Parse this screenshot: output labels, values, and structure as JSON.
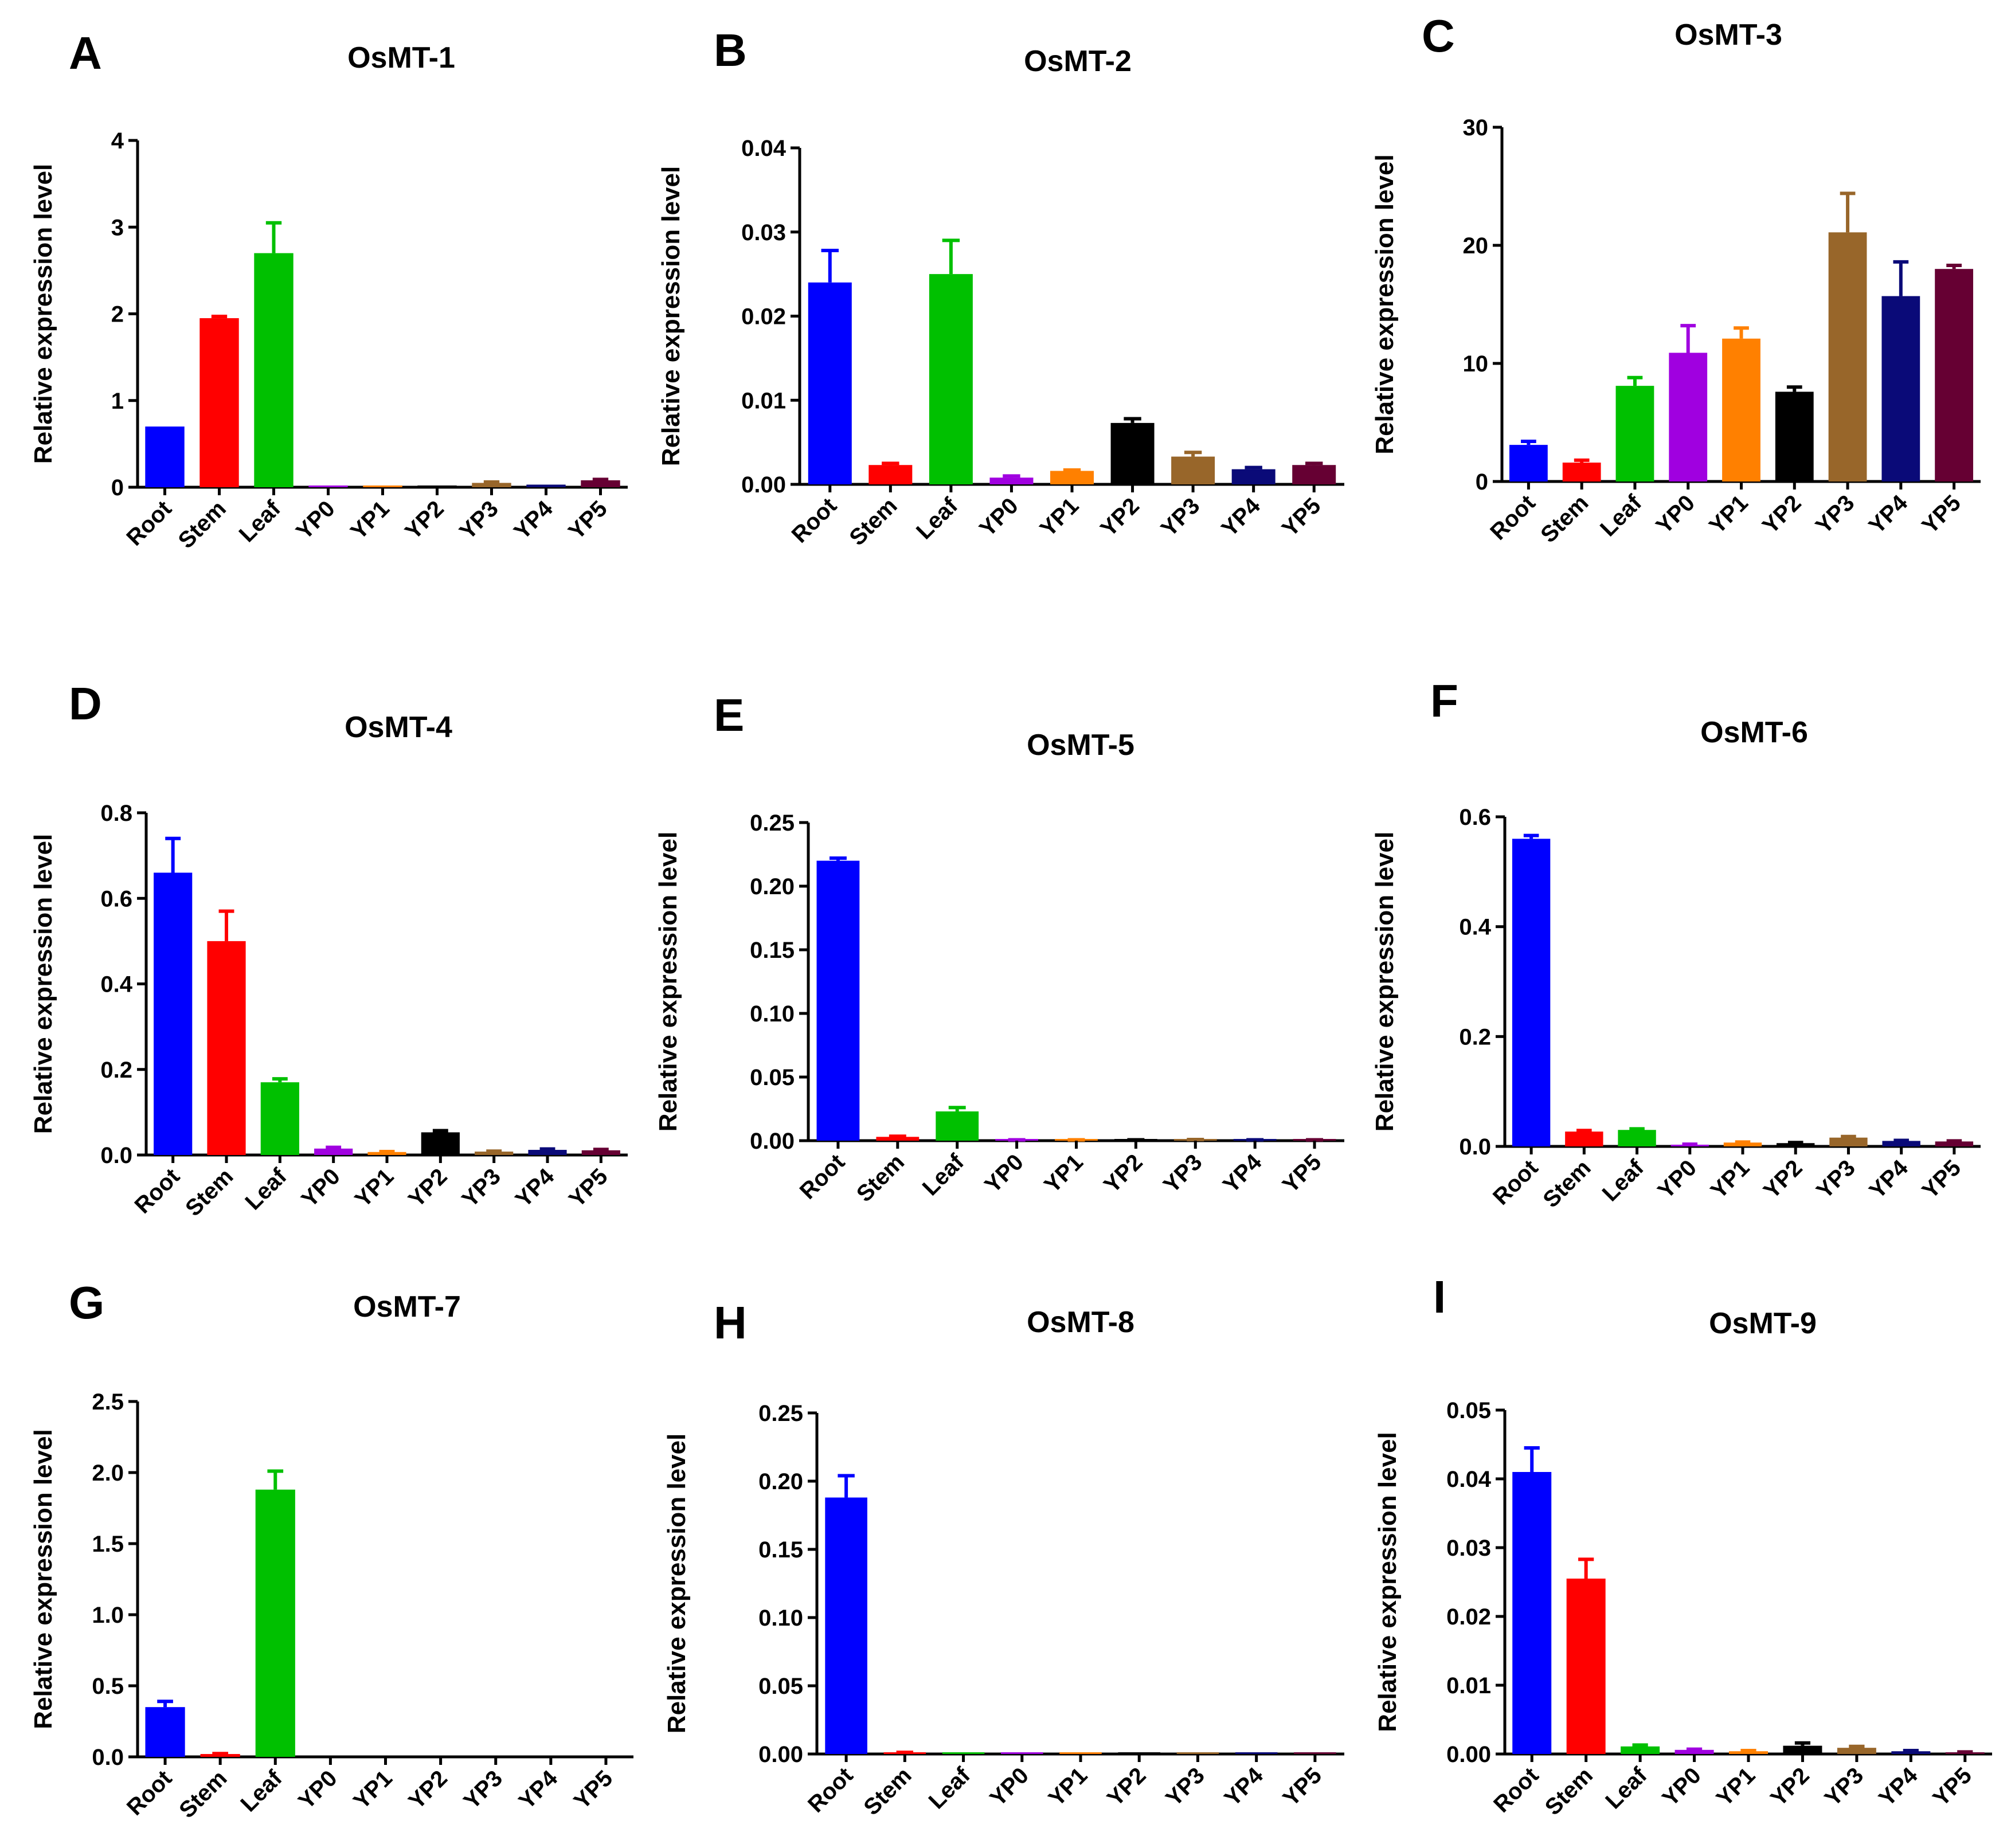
{
  "colors": {
    "Root": "#0000ff",
    "Stem": "#ff0000",
    "Leaf": "#00c000",
    "YP0": "#a000e0",
    "YP1": "#ff8000",
    "YP2": "#000000",
    "YP3": "#98662a",
    "YP4": "#0a0a78",
    "YP5": "#660033"
  },
  "chart_data": [
    {
      "type": "bar",
      "letter": "A",
      "title": "OsMT-1",
      "xlabel": "",
      "ylabel": "Relative expression level",
      "categories": [
        "Root",
        "Stem",
        "Leaf",
        "YP0",
        "YP1",
        "YP2",
        "YP3",
        "YP4",
        "YP5"
      ],
      "values": [
        0.7,
        1.95,
        2.7,
        0.01,
        0.01,
        0.02,
        0.05,
        0.03,
        0.08
      ],
      "errors": [
        0.0,
        0.02,
        0.35,
        0.0,
        0.0,
        0.0,
        0.01,
        0.0,
        0.01
      ],
      "ylim": [
        0,
        4
      ],
      "ticks": [
        0,
        1,
        2,
        3,
        4
      ],
      "tick_labels": [
        "0",
        "1",
        "2",
        "3",
        "4"
      ]
    },
    {
      "type": "bar",
      "letter": "B",
      "title": "OsMT-2",
      "xlabel": "",
      "ylabel": "Relative expression level",
      "categories": [
        "Root",
        "Stem",
        "Leaf",
        "YP0",
        "YP1",
        "YP2",
        "YP3",
        "YP4",
        "YP5"
      ],
      "values": [
        0.024,
        0.0023,
        0.025,
        0.0008,
        0.0016,
        0.0073,
        0.0033,
        0.0018,
        0.0023
      ],
      "errors": [
        0.0038,
        0.0002,
        0.004,
        0.0002,
        0.0001,
        0.0005,
        0.0005,
        0.0002,
        0.0002
      ],
      "ylim": [
        0,
        0.04
      ],
      "ticks": [
        0,
        0.01,
        0.02,
        0.03,
        0.04
      ],
      "tick_labels": [
        "0.00",
        "0.01",
        "0.02",
        "0.03",
        "0.04"
      ]
    },
    {
      "type": "bar",
      "letter": "C",
      "title": "OsMT-3",
      "xlabel": "",
      "ylabel": "Relative expression level",
      "categories": [
        "Root",
        "Stem",
        "Leaf",
        "YP0",
        "YP1",
        "YP2",
        "YP3",
        "YP4",
        "YP5"
      ],
      "values": [
        3.1,
        1.6,
        8.1,
        10.9,
        12.1,
        7.6,
        21.1,
        15.7,
        18.0
      ],
      "errors": [
        0.3,
        0.2,
        0.7,
        2.3,
        0.9,
        0.4,
        3.3,
        2.9,
        0.3
      ],
      "ylim": [
        0,
        30
      ],
      "ticks": [
        0,
        10,
        20,
        30
      ],
      "tick_labels": [
        "0",
        "10",
        "20",
        "30"
      ]
    },
    {
      "type": "bar",
      "letter": "D",
      "title": "OsMT-4",
      "xlabel": "",
      "ylabel": "Relative expression level",
      "categories": [
        "Root",
        "Stem",
        "Leaf",
        "YP0",
        "YP1",
        "YP2",
        "YP3",
        "YP4",
        "YP5"
      ],
      "values": [
        0.66,
        0.5,
        0.17,
        0.015,
        0.007,
        0.053,
        0.008,
        0.012,
        0.011
      ],
      "errors": [
        0.08,
        0.07,
        0.008,
        0.003,
        0.001,
        0.004,
        0.001,
        0.002,
        0.002
      ],
      "ylim": [
        0,
        0.8
      ],
      "ticks": [
        0,
        0.2,
        0.4,
        0.6,
        0.8
      ],
      "tick_labels": [
        "0.0",
        "0.2",
        "0.4",
        "0.6",
        "0.8"
      ]
    },
    {
      "type": "bar",
      "letter": "E",
      "title": "OsMT-5",
      "xlabel": "",
      "ylabel": "Relative expression level",
      "categories": [
        "Root",
        "Stem",
        "Leaf",
        "YP0",
        "YP1",
        "YP2",
        "YP3",
        "YP4",
        "YP5"
      ],
      "values": [
        0.22,
        0.003,
        0.023,
        0.0006,
        0.0006,
        0.0006,
        0.0008,
        0.0006,
        0.0006
      ],
      "errors": [
        0.002,
        0.0005,
        0.003,
        0.0001,
        0.0001,
        0.0001,
        0.0001,
        0.0001,
        0.0001
      ],
      "ylim": [
        0,
        0.25
      ],
      "ticks": [
        0,
        0.05,
        0.1,
        0.15,
        0.2,
        0.25
      ],
      "tick_labels": [
        "0.00",
        "0.05",
        "0.10",
        "0.15",
        "0.20",
        "0.25"
      ]
    },
    {
      "type": "bar",
      "letter": "F",
      "title": "OsMT-6",
      "xlabel": "",
      "ylabel": "Relative expression level",
      "categories": [
        "Root",
        "Stem",
        "Leaf",
        "YP0",
        "YP1",
        "YP2",
        "YP3",
        "YP4",
        "YP5"
      ],
      "values": [
        0.56,
        0.027,
        0.03,
        0.003,
        0.007,
        0.006,
        0.016,
        0.01,
        0.009
      ],
      "errors": [
        0.006,
        0.002,
        0.002,
        0.001,
        0.001,
        0.001,
        0.002,
        0.001,
        0.001
      ],
      "ylim": [
        0,
        0.6
      ],
      "ticks": [
        0,
        0.2,
        0.4,
        0.6
      ],
      "tick_labels": [
        "0.0",
        "0.2",
        "0.4",
        "0.6"
      ]
    },
    {
      "type": "bar",
      "letter": "G",
      "title": "OsMT-7",
      "xlabel": "",
      "ylabel": "Relative expression level",
      "categories": [
        "Root",
        "Stem",
        "Leaf",
        "YP0",
        "YP1",
        "YP2",
        "YP3",
        "YP4",
        "YP5"
      ],
      "values": [
        0.35,
        0.02,
        1.88,
        0.0,
        0.0,
        0.0,
        0.0,
        0.0,
        0.0
      ],
      "errors": [
        0.04,
        0.003,
        0.13,
        0.0,
        0.0,
        0.0,
        0.0,
        0.0,
        0.0
      ],
      "ylim": [
        0,
        2.5
      ],
      "ticks": [
        0,
        0.5,
        1.0,
        1.5,
        2.0,
        2.5
      ],
      "tick_labels": [
        "0.0",
        "0.5",
        "1.0",
        "1.5",
        "2.0",
        "2.5"
      ]
    },
    {
      "type": "bar",
      "letter": "H",
      "title": "OsMT-8",
      "xlabel": "",
      "ylabel": "Relative expression level",
      "categories": [
        "Root",
        "Stem",
        "Leaf",
        "YP0",
        "YP1",
        "YP2",
        "YP3",
        "YP4",
        "YP5"
      ],
      "values": [
        0.188,
        0.001,
        0.0002,
        0.0001,
        0.0001,
        0.0004,
        0.0003,
        0.0001,
        0.0001
      ],
      "errors": [
        0.016,
        0.0002,
        0.0,
        0.0,
        0.0,
        0.0,
        0.0,
        0.0,
        0.0
      ],
      "ylim": [
        0,
        0.25
      ],
      "ticks": [
        0,
        0.05,
        0.1,
        0.15,
        0.2,
        0.25
      ],
      "tick_labels": [
        "0.00",
        "0.05",
        "0.10",
        "0.15",
        "0.20",
        "0.25"
      ]
    },
    {
      "type": "bar",
      "letter": "I",
      "title": "OsMT-9",
      "xlabel": "",
      "ylabel": "Relative expression level",
      "categories": [
        "Root",
        "Stem",
        "Leaf",
        "YP0",
        "YP1",
        "YP2",
        "YP3",
        "YP4",
        "YP5"
      ],
      "values": [
        0.041,
        0.0255,
        0.0011,
        0.0006,
        0.0004,
        0.0012,
        0.0009,
        0.0004,
        0.0002
      ],
      "errors": [
        0.0035,
        0.0028,
        0.0002,
        0.0001,
        0.0001,
        0.0004,
        0.0002,
        0.0001,
        0.0001
      ],
      "ylim": [
        0,
        0.05
      ],
      "ticks": [
        0,
        0.01,
        0.02,
        0.03,
        0.04,
        0.05
      ],
      "tick_labels": [
        "0.00",
        "0.01",
        "0.02",
        "0.03",
        "0.04",
        "0.05"
      ]
    }
  ]
}
